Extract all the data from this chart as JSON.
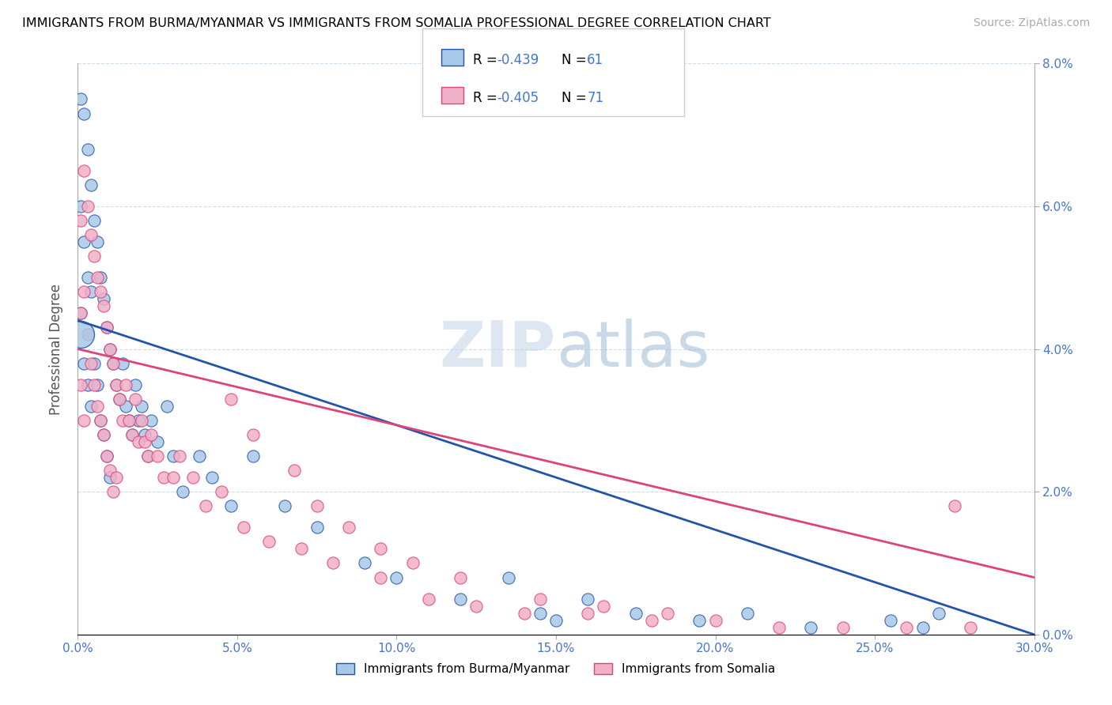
{
  "title": "IMMIGRANTS FROM BURMA/MYANMAR VS IMMIGRANTS FROM SOMALIA PROFESSIONAL DEGREE CORRELATION CHART",
  "source": "Source: ZipAtlas.com",
  "ylabel": "Professional Degree",
  "legend_label_1": "Immigrants from Burma/Myanmar",
  "legend_label_2": "Immigrants from Somalia",
  "color_blue": "#a8c8e8",
  "color_pink": "#f0b0c8",
  "line_color_blue": "#2255aa",
  "line_color_pink": "#dd4477",
  "watermark_zip": "ZIP",
  "watermark_atlas": "atlas",
  "xlim": [
    0.0,
    0.3
  ],
  "ylim": [
    0.0,
    0.08
  ],
  "xticks": [
    0.0,
    0.05,
    0.1,
    0.15,
    0.2,
    0.25,
    0.3
  ],
  "yticks": [
    0.0,
    0.02,
    0.04,
    0.06,
    0.08
  ],
  "blue_line_x0": 0.0,
  "blue_line_y0": 0.044,
  "blue_line_x1": 0.3,
  "blue_line_y1": 0.0,
  "pink_line_x0": 0.0,
  "pink_line_y0": 0.04,
  "pink_line_x1": 0.3,
  "pink_line_y1": 0.008,
  "blue_x": [
    0.001,
    0.001,
    0.001,
    0.002,
    0.002,
    0.002,
    0.003,
    0.003,
    0.003,
    0.004,
    0.004,
    0.004,
    0.005,
    0.005,
    0.006,
    0.006,
    0.007,
    0.007,
    0.008,
    0.008,
    0.009,
    0.009,
    0.01,
    0.01,
    0.011,
    0.012,
    0.013,
    0.014,
    0.015,
    0.016,
    0.017,
    0.018,
    0.019,
    0.02,
    0.021,
    0.022,
    0.023,
    0.025,
    0.028,
    0.03,
    0.033,
    0.038,
    0.042,
    0.048,
    0.055,
    0.065,
    0.075,
    0.09,
    0.1,
    0.12,
    0.145,
    0.16,
    0.175,
    0.195,
    0.21,
    0.23,
    0.255,
    0.265,
    0.27,
    0.135,
    0.15
  ],
  "blue_y": [
    0.075,
    0.06,
    0.045,
    0.073,
    0.055,
    0.038,
    0.068,
    0.05,
    0.035,
    0.063,
    0.048,
    0.032,
    0.058,
    0.038,
    0.055,
    0.035,
    0.05,
    0.03,
    0.047,
    0.028,
    0.043,
    0.025,
    0.04,
    0.022,
    0.038,
    0.035,
    0.033,
    0.038,
    0.032,
    0.03,
    0.028,
    0.035,
    0.03,
    0.032,
    0.028,
    0.025,
    0.03,
    0.027,
    0.032,
    0.025,
    0.02,
    0.025,
    0.022,
    0.018,
    0.025,
    0.018,
    0.015,
    0.01,
    0.008,
    0.005,
    0.003,
    0.005,
    0.003,
    0.002,
    0.003,
    0.001,
    0.002,
    0.001,
    0.003,
    0.008,
    0.002
  ],
  "pink_x": [
    0.001,
    0.001,
    0.001,
    0.002,
    0.002,
    0.002,
    0.003,
    0.003,
    0.004,
    0.004,
    0.005,
    0.005,
    0.006,
    0.006,
    0.007,
    0.007,
    0.008,
    0.008,
    0.009,
    0.009,
    0.01,
    0.01,
    0.011,
    0.011,
    0.012,
    0.012,
    0.013,
    0.014,
    0.015,
    0.016,
    0.017,
    0.018,
    0.019,
    0.02,
    0.021,
    0.022,
    0.023,
    0.025,
    0.027,
    0.03,
    0.032,
    0.036,
    0.04,
    0.045,
    0.052,
    0.06,
    0.07,
    0.08,
    0.095,
    0.11,
    0.125,
    0.14,
    0.16,
    0.18,
    0.2,
    0.22,
    0.24,
    0.26,
    0.28,
    0.048,
    0.055,
    0.068,
    0.075,
    0.085,
    0.095,
    0.105,
    0.12,
    0.145,
    0.165,
    0.185,
    0.275
  ],
  "pink_y": [
    0.058,
    0.045,
    0.035,
    0.065,
    0.048,
    0.03,
    0.06,
    0.042,
    0.056,
    0.038,
    0.053,
    0.035,
    0.05,
    0.032,
    0.048,
    0.03,
    0.046,
    0.028,
    0.043,
    0.025,
    0.04,
    0.023,
    0.038,
    0.02,
    0.035,
    0.022,
    0.033,
    0.03,
    0.035,
    0.03,
    0.028,
    0.033,
    0.027,
    0.03,
    0.027,
    0.025,
    0.028,
    0.025,
    0.022,
    0.022,
    0.025,
    0.022,
    0.018,
    0.02,
    0.015,
    0.013,
    0.012,
    0.01,
    0.008,
    0.005,
    0.004,
    0.003,
    0.003,
    0.002,
    0.002,
    0.001,
    0.001,
    0.001,
    0.001,
    0.033,
    0.028,
    0.023,
    0.018,
    0.015,
    0.012,
    0.01,
    0.008,
    0.005,
    0.004,
    0.003,
    0.018
  ]
}
